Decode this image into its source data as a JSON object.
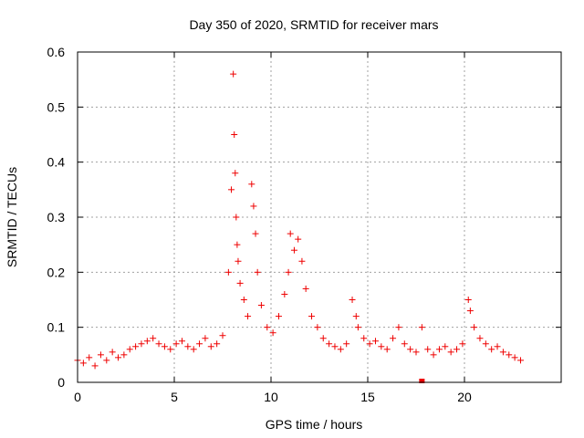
{
  "chart_data": {
    "type": "scatter",
    "title": "Day 350 of 2020, SRMTID for receiver mars",
    "xlabel": "GPS time / hours",
    "ylabel": "SRMTID / TECUs",
    "xlim": [
      0,
      25
    ],
    "ylim": [
      0,
      0.6
    ],
    "xticks": [
      0,
      5,
      10,
      15,
      20
    ],
    "xtick_labels": [
      "0",
      "5",
      "10",
      "15",
      "20"
    ],
    "yticks": [
      0,
      0.1,
      0.2,
      0.3,
      0.4,
      0.5,
      0.6
    ],
    "ytick_labels": [
      "0",
      "0.1",
      "0.2",
      "0.3",
      "0.4",
      "0.5",
      "0.6"
    ],
    "grid": true,
    "marker": "plus",
    "color": "#ee0000",
    "series": [
      {
        "name": "SRMTID",
        "x": [
          0.0,
          0.3,
          0.6,
          0.9,
          1.2,
          1.5,
          1.8,
          2.1,
          2.4,
          2.7,
          3.0,
          3.3,
          3.6,
          3.9,
          4.2,
          4.5,
          4.8,
          5.1,
          5.4,
          5.7,
          6.0,
          6.3,
          6.6,
          6.9,
          7.2,
          7.5,
          7.8,
          7.95,
          8.05,
          8.1,
          8.15,
          8.2,
          8.25,
          8.3,
          8.4,
          8.6,
          8.8,
          9.0,
          9.1,
          9.2,
          9.3,
          9.5,
          9.8,
          10.1,
          10.4,
          10.7,
          10.9,
          11.0,
          11.2,
          11.4,
          11.6,
          11.8,
          12.1,
          12.4,
          12.7,
          13.0,
          13.3,
          13.6,
          13.9,
          14.2,
          14.4,
          14.5,
          14.8,
          15.1,
          15.4,
          15.7,
          16.0,
          16.3,
          16.6,
          16.9,
          17.2,
          17.5,
          17.8,
          18.1,
          18.4,
          18.7,
          19.0,
          19.3,
          19.6,
          19.9,
          20.2,
          20.3,
          20.5,
          20.8,
          21.1,
          21.4,
          21.7,
          22.0,
          22.3,
          22.6,
          22.9
        ],
        "y": [
          0.04,
          0.035,
          0.045,
          0.03,
          0.05,
          0.04,
          0.055,
          0.045,
          0.05,
          0.06,
          0.065,
          0.07,
          0.075,
          0.08,
          0.07,
          0.065,
          0.06,
          0.07,
          0.075,
          0.065,
          0.06,
          0.07,
          0.08,
          0.065,
          0.07,
          0.085,
          0.2,
          0.35,
          0.56,
          0.45,
          0.38,
          0.3,
          0.25,
          0.22,
          0.18,
          0.15,
          0.12,
          0.36,
          0.32,
          0.27,
          0.2,
          0.14,
          0.1,
          0.09,
          0.12,
          0.16,
          0.2,
          0.27,
          0.24,
          0.26,
          0.22,
          0.17,
          0.12,
          0.1,
          0.08,
          0.07,
          0.065,
          0.06,
          0.07,
          0.15,
          0.12,
          0.1,
          0.08,
          0.07,
          0.075,
          0.065,
          0.06,
          0.08,
          0.1,
          0.07,
          0.06,
          0.055,
          0.1,
          0.06,
          0.05,
          0.06,
          0.065,
          0.055,
          0.06,
          0.07,
          0.15,
          0.13,
          0.1,
          0.08,
          0.07,
          0.06,
          0.065,
          0.055,
          0.05,
          0.045,
          0.04
        ],
        "outliers_x": [
          17.8
        ],
        "outliers_y": [
          0.0
        ]
      }
    ]
  }
}
